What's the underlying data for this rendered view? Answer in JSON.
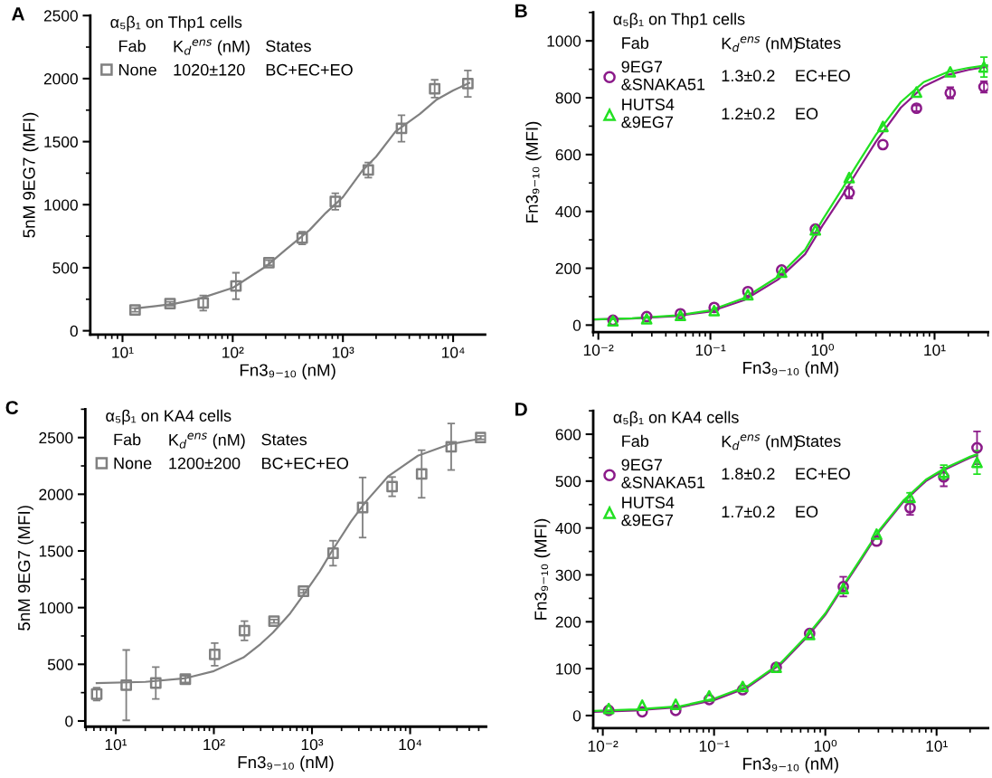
{
  "chart_data": [
    {
      "type": "scatter",
      "title": "A",
      "subtitle": "α₅β₁ on Thp1 cells",
      "xlabel": "Fn3₉₋₁₀ (nM)",
      "ylabel": "5nM 9EG7 (MFI)",
      "log": "x",
      "legend": "top left",
      "xlim": [
        5.1,
        19500
      ],
      "xticks": [
        {
          "value": 10,
          "label": "10¹"
        },
        {
          "value": 100,
          "label": "10²"
        },
        {
          "value": 1000,
          "label": "10³"
        },
        {
          "value": 10000,
          "label": "10⁴"
        }
      ],
      "ylim": [
        -30,
        2500
      ],
      "yticks": [
        0,
        500,
        1000,
        1500,
        2000,
        2500
      ],
      "annotations": [
        "Fab",
        "K$_{d}$$^{ens}$ (nM)",
        "States",
        "1020±120",
        "BC+EC+EO"
      ],
      "series": [
        {
          "name": "None",
          "color": "#808080",
          "marker": "square",
          "x": [
            13,
            27,
            54,
            107,
            213,
            427,
            853,
            1700,
            3400,
            6800,
            13600
          ],
          "values": [
            165,
            215,
            220,
            355,
            540,
            735,
            1025,
            1275,
            1605,
            1920,
            1960
          ],
          "errors": [
            15,
            15,
            60,
            105,
            20,
            50,
            65,
            60,
            105,
            70,
            105
          ]
        },
        {
          "type": "line",
          "color": "#808080",
          "x": [
            13,
            20,
            30,
            50,
            100,
            200,
            300,
            500,
            700,
            1000,
            1500,
            2000,
            3000,
            5000,
            7000,
            10000,
            14000
          ],
          "values": [
            177,
            195,
            215,
            255,
            340,
            510,
            640,
            800,
            935,
            1060,
            1270,
            1380,
            1580,
            1720,
            1830,
            1906,
            1965
          ]
        }
      ]
    },
    {
      "type": "scatter",
      "title": "B",
      "subtitle": "α₅β₁ on Thp1 cells",
      "xlabel": "Fn3₉₋₁₀ (nM)",
      "ylabel": "Fn3₉₋₁₀ (MFI)",
      "log": "x",
      "legend": "top left",
      "xlim": [
        0.009,
        30
      ],
      "xticks": [
        {
          "value": 0.01,
          "label": "10⁻²"
        },
        {
          "value": 0.1,
          "label": "10⁻¹"
        },
        {
          "value": 1,
          "label": "10⁰"
        },
        {
          "value": 10,
          "label": "10¹"
        }
      ],
      "ylim": [
        -25,
        1100
      ],
      "yticks": [
        0,
        200,
        400,
        600,
        800,
        1000
      ],
      "annotations": [
        "Fab",
        "K$_{d}$$^{ens}$ (nM)",
        "States",
        "1.3±0.2",
        "EC+EO",
        "1.2±0.2",
        "EO"
      ],
      "series": [
        {
          "name": "9EG7\n&SNAKA51",
          "color": "#8b1a89",
          "marker": "circle",
          "x": [
            0.0135,
            0.027,
            0.054,
            0.108,
            0.216,
            0.432,
            0.864,
            1.73,
            3.46,
            6.9,
            13.8,
            27.6
          ],
          "values": [
            17,
            30,
            40,
            62,
            118,
            194,
            338,
            466,
            635,
            763,
            817,
            838
          ],
          "errors": [
            null,
            null,
            null,
            null,
            null,
            null,
            null,
            20,
            null,
            10,
            20,
            20
          ]
        },
        {
          "name": "HUTS4\n&9EG7",
          "color": "#22e022",
          "marker": "triangle",
          "x": [
            0.0135,
            0.027,
            0.054,
            0.108,
            0.216,
            0.432,
            0.864,
            1.73,
            3.46,
            6.9,
            13.8,
            27.6
          ],
          "values": [
            15,
            22,
            34,
            51,
            107,
            186,
            335,
            519,
            699,
            820,
            891,
            908
          ],
          "errors": [
            null,
            null,
            null,
            null,
            null,
            null,
            null,
            null,
            null,
            null,
            null,
            35
          ]
        },
        {
          "type": "line",
          "color": "#8b1a89",
          "x": [
            0.009,
            0.02,
            0.05,
            0.1,
            0.2,
            0.4,
            0.7,
            1,
            1.5,
            2,
            3,
            5,
            8,
            13,
            20,
            30
          ],
          "values": [
            20,
            23,
            32,
            48,
            88,
            160,
            250,
            350,
            455,
            535,
            645,
            765,
            840,
            880,
            898,
            910
          ]
        },
        {
          "type": "line",
          "color": "#22e022",
          "x": [
            0.009,
            0.02,
            0.05,
            0.1,
            0.2,
            0.4,
            0.7,
            1,
            1.5,
            2,
            3,
            5,
            8,
            13,
            20,
            30
          ],
          "values": [
            20,
            24,
            34,
            52,
            95,
            170,
            265,
            370,
            480,
            560,
            670,
            785,
            855,
            890,
            905,
            915
          ]
        }
      ]
    },
    {
      "type": "scatter",
      "title": "C",
      "subtitle": "α₅β₁ on KA4 cells",
      "xlabel": "Fn3₉₋₁₀ (nM)",
      "ylabel": "5nM 9EG7 (MFI)",
      "log": "x",
      "legend": "top left",
      "xlim": [
        4.9,
        59400
      ],
      "xticks": [
        {
          "value": 10,
          "label": "10¹"
        },
        {
          "value": 100,
          "label": "10²"
        },
        {
          "value": 1000,
          "label": "10³"
        },
        {
          "value": 10000,
          "label": "10⁴"
        }
      ],
      "ylim": [
        -50,
        2750
      ],
      "yticks": [
        0,
        500,
        1000,
        1500,
        2000,
        2500
      ],
      "annotations": [
        "Fab",
        "K$_{d}$$^{ens}$ (nM)",
        "States",
        "1200±200",
        "BC+EC+EO"
      ],
      "series": [
        {
          "name": "None",
          "color": "#808080",
          "marker": "square",
          "x": [
            6.4,
            12.8,
            25.6,
            51.2,
            102,
            205,
            410,
            819,
            1640,
            3280,
            6550,
            13100,
            26200,
            52400
          ],
          "values": [
            237,
            316,
            335,
            369,
            587,
            796,
            880,
            1145,
            1480,
            1883,
            2067,
            2179,
            2419,
            2500
          ],
          "errors": [
            56,
            310,
            140,
            30,
            100,
            85,
            15,
            15,
            110,
            265,
            85,
            210,
            205,
            15
          ]
        },
        {
          "type": "line",
          "color": "#808080",
          "x": [
            6.4,
            20,
            50,
            100,
            200,
            300,
            400,
            600,
            800,
            1200,
            1600,
            2500,
            3500,
            6000,
            12000,
            25000,
            52000
          ],
          "values": [
            335,
            345,
            375,
            440,
            560,
            680,
            780,
            950,
            1100,
            1320,
            1500,
            1760,
            1930,
            2160,
            2340,
            2440,
            2490
          ]
        }
      ]
    },
    {
      "type": "scatter",
      "title": "D",
      "subtitle": "α₅β₁ on KA4 cells",
      "xlabel": "Fn3₉₋₁₀ (nM)",
      "ylabel": "Fn3₉₋₁₀ (MFI)",
      "log": "x",
      "legend": "top left",
      "xlim": [
        0.0082,
        29
      ],
      "xticks": [
        {
          "value": 0.01,
          "label": "10⁻²"
        },
        {
          "value": 0.1,
          "label": "10⁻¹"
        },
        {
          "value": 1,
          "label": "10⁰"
        },
        {
          "value": 10,
          "label": "10¹"
        }
      ],
      "ylim": [
        -27,
        650
      ],
      "yticks": [
        0,
        100,
        200,
        300,
        400,
        500,
        600
      ],
      "annotations": [
        "Fab",
        "K$_{d}$$^{ens}$ (nM)",
        "States",
        "1.8±0.2",
        "EC+EO",
        "1.7±0.2",
        "EO"
      ],
      "series": [
        {
          "name": "9EG7\n&SNAKA51",
          "color": "#8b1a89",
          "marker": "circle",
          "x": [
            0.0113,
            0.0226,
            0.0452,
            0.0904,
            0.181,
            0.362,
            0.723,
            1.45,
            2.89,
            5.78,
            11.6,
            23.1
          ],
          "values": [
            11,
            8,
            11,
            34,
            55,
            103,
            175,
            275,
            372,
            443,
            509,
            571
          ],
          "errors": [
            null,
            null,
            null,
            null,
            null,
            null,
            null,
            21,
            null,
            15,
            20,
            35
          ]
        },
        {
          "name": "HUTS4\n&9EG7",
          "color": "#22e022",
          "marker": "triangle",
          "x": [
            0.0113,
            0.0226,
            0.0452,
            0.0904,
            0.181,
            0.362,
            0.723,
            1.45,
            2.89,
            5.78,
            11.6,
            23.1
          ],
          "values": [
            15,
            22,
            24,
            42,
            62,
            103,
            173,
            271,
            387,
            465,
            519,
            540
          ],
          "errors": [
            null,
            null,
            null,
            null,
            null,
            null,
            null,
            null,
            null,
            10,
            15,
            25
          ]
        },
        {
          "type": "line",
          "color": "#8b1a89",
          "x": [
            0.0082,
            0.02,
            0.05,
            0.1,
            0.2,
            0.4,
            0.7,
            1,
            1.5,
            2,
            3,
            5,
            8,
            12,
            20,
            23
          ],
          "values": [
            8,
            11,
            18,
            33,
            60,
            110,
            170,
            215,
            280,
            325,
            390,
            455,
            500,
            525,
            550,
            555
          ]
        },
        {
          "type": "line",
          "color": "#22e022",
          "x": [
            0.0082,
            0.02,
            0.05,
            0.1,
            0.2,
            0.4,
            0.7,
            1,
            1.5,
            2,
            3,
            5,
            8,
            12,
            20,
            23
          ],
          "values": [
            10,
            13,
            20,
            36,
            63,
            113,
            173,
            218,
            283,
            328,
            393,
            458,
            503,
            528,
            552,
            557
          ]
        }
      ]
    }
  ]
}
